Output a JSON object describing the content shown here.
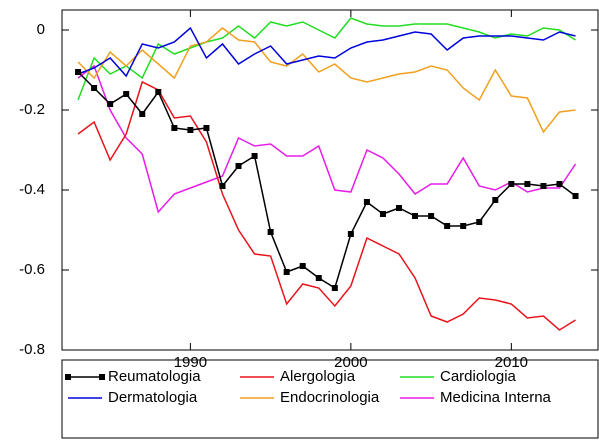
{
  "chart_data": {
    "type": "line",
    "x": [
      1983,
      1984,
      1985,
      1986,
      1987,
      1988,
      1989,
      1990,
      1991,
      1992,
      1993,
      1994,
      1995,
      1996,
      1997,
      1998,
      1999,
      2000,
      2001,
      2002,
      2003,
      2004,
      2005,
      2006,
      2007,
      2008,
      2009,
      2010,
      2011,
      2012,
      2013,
      2014
    ],
    "xlim": [
      1982,
      2015.4
    ],
    "xticks": [
      1990,
      2000,
      2010
    ],
    "ylim": [
      -0.8,
      0.05
    ],
    "yticks": [
      -0.8,
      -0.6,
      -0.4,
      -0.2,
      0
    ],
    "series": [
      {
        "name": "Reumatologia",
        "color": "#000000",
        "marker": "square",
        "values": [
          -0.105,
          -0.145,
          -0.185,
          -0.16,
          -0.21,
          -0.155,
          -0.245,
          -0.25,
          -0.245,
          -0.39,
          -0.34,
          -0.315,
          -0.505,
          -0.605,
          -0.59,
          -0.62,
          -0.645,
          -0.51,
          -0.43,
          -0.46,
          -0.445,
          -0.465,
          -0.465,
          -0.49,
          -0.49,
          -0.48,
          -0.425,
          -0.385,
          -0.385,
          -0.39,
          -0.385,
          -0.415
        ]
      },
      {
        "name": "Dermatologia",
        "color": "#0000dd",
        "values": [
          -0.11,
          -0.095,
          -0.07,
          -0.115,
          -0.035,
          -0.045,
          -0.03,
          0.005,
          -0.07,
          -0.035,
          -0.085,
          -0.06,
          -0.04,
          -0.085,
          -0.075,
          -0.065,
          -0.07,
          -0.045,
          -0.03,
          -0.025,
          -0.015,
          -0.005,
          -0.01,
          -0.05,
          -0.02,
          -0.015,
          -0.015,
          -0.015,
          -0.02,
          -0.025,
          -0.005,
          -0.015
        ]
      },
      {
        "name": "Alergologia",
        "color": "#e8141c",
        "values": [
          -0.26,
          -0.23,
          -0.325,
          -0.26,
          -0.13,
          -0.15,
          -0.22,
          -0.215,
          -0.28,
          -0.41,
          -0.5,
          -0.56,
          -0.565,
          -0.685,
          -0.635,
          -0.645,
          -0.69,
          -0.64,
          -0.52,
          -0.54,
          -0.56,
          -0.62,
          -0.715,
          -0.73,
          -0.71,
          -0.67,
          -0.675,
          -0.685,
          -0.72,
          -0.715,
          -0.75,
          -0.725
        ]
      },
      {
        "name": "Endocrinologia",
        "color": "#f0a020",
        "values": [
          -0.08,
          -0.12,
          -0.055,
          -0.09,
          -0.05,
          -0.085,
          -0.12,
          -0.04,
          -0.03,
          0.005,
          -0.025,
          -0.03,
          -0.08,
          -0.09,
          -0.06,
          -0.105,
          -0.085,
          -0.12,
          -0.13,
          -0.12,
          -0.11,
          -0.105,
          -0.09,
          -0.1,
          -0.145,
          -0.175,
          -0.1,
          -0.165,
          -0.17,
          -0.255,
          -0.205,
          -0.2
        ]
      },
      {
        "name": "Cardiologia",
        "color": "#22dd22",
        "values": [
          -0.175,
          -0.07,
          -0.11,
          -0.09,
          -0.12,
          -0.035,
          -0.06,
          -0.045,
          -0.03,
          -0.02,
          0.01,
          -0.02,
          0.02,
          0.01,
          0.02,
          0.0,
          -0.02,
          0.03,
          0.015,
          0.01,
          0.01,
          0.015,
          0.015,
          0.015,
          0.005,
          -0.005,
          -0.02,
          -0.01,
          -0.015,
          0.005,
          0.0,
          -0.025
        ]
      },
      {
        "name": "Medicina Interna",
        "color": "#e81ce8",
        "values": [
          -0.12,
          -0.09,
          -0.2,
          -0.27,
          -0.31,
          -0.455,
          -0.41,
          -0.395,
          -0.38,
          -0.365,
          -0.27,
          -0.29,
          -0.285,
          -0.315,
          -0.315,
          -0.29,
          -0.4,
          -0.405,
          -0.3,
          -0.32,
          -0.36,
          -0.41,
          -0.385,
          -0.385,
          -0.32,
          -0.39,
          -0.4,
          -0.38,
          -0.405,
          -0.395,
          -0.395,
          -0.335
        ]
      }
    ]
  }
}
